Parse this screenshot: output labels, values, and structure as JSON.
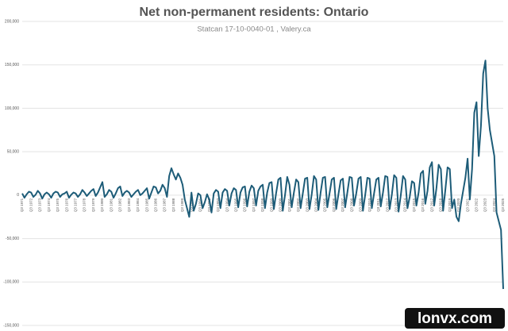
{
  "chart_data": {
    "type": "line",
    "title": "Net non-permanent residents: Ontario",
    "subtitle": "Statcan 17-10-0040-01 , Valery.ca",
    "watermark": "lonvx.com",
    "categories": [
      "Q3 1971",
      null,
      null,
      null,
      "Q3 1972",
      null,
      null,
      null,
      "Q3 1973",
      null,
      null,
      null,
      "Q3 1974",
      null,
      null,
      null,
      "Q3 1975",
      null,
      null,
      null,
      "Q3 1976",
      null,
      null,
      null,
      "Q3 1977",
      null,
      null,
      null,
      "Q3 1978",
      null,
      null,
      null,
      "Q3 1979",
      null,
      null,
      null,
      "Q3 1980",
      null,
      null,
      null,
      "Q3 1981",
      null,
      null,
      null,
      "Q3 1982",
      null,
      null,
      null,
      "Q3 1983",
      null,
      null,
      null,
      "Q3 1984",
      null,
      null,
      null,
      "Q3 1985",
      null,
      null,
      null,
      "Q3 1986",
      null,
      null,
      null,
      "Q3 1987",
      null,
      null,
      null,
      "Q3 1988",
      null,
      null,
      null,
      "Q3 1989",
      null,
      null,
      null,
      "Q3 1990",
      null,
      null,
      null,
      "Q3 1991",
      null,
      null,
      null,
      "Q3 1992",
      null,
      null,
      null,
      "Q3 1993",
      null,
      null,
      null,
      "Q3 1994",
      null,
      null,
      null,
      "Q3 1995",
      null,
      null,
      null,
      "Q3 1996",
      null,
      null,
      null,
      "Q3 1997",
      null,
      null,
      null,
      "Q3 1998",
      null,
      null,
      null,
      "Q3 1999",
      null,
      null,
      null,
      "Q3 2000",
      null,
      null,
      null,
      "Q3 2001",
      null,
      null,
      null,
      "Q3 2002",
      null,
      null,
      null,
      "Q3 2003",
      null,
      null,
      null,
      "Q3 2004",
      null,
      null,
      null,
      "Q3 2005",
      null,
      null,
      null,
      "Q3 2006",
      null,
      null,
      null,
      "Q3 2007",
      null,
      null,
      null,
      "Q3 2008",
      null,
      null,
      null,
      "Q3 2009",
      null,
      null,
      null,
      "Q3 2010",
      null,
      null,
      null,
      "Q3 2011",
      null,
      null,
      null,
      "Q3 2012",
      null,
      null,
      null,
      "Q3 2013",
      null,
      null,
      null,
      "Q3 2014",
      null,
      null,
      null,
      "Q3 2015",
      null,
      null,
      null,
      "Q3 2016",
      null,
      null,
      null,
      "Q3 2017",
      null,
      null,
      null,
      "Q3 2018",
      null,
      null,
      null,
      "Q3 2019",
      null,
      null,
      null,
      "Q3 2020",
      null,
      null,
      null,
      "Q3 2021",
      null,
      null,
      null,
      "Q3 2022",
      null,
      null,
      null,
      "Q3 2023",
      null,
      null,
      null,
      "Q3 2024",
      null,
      null,
      null,
      "Q3 2025"
    ],
    "series": [
      {
        "name": "Net non-permanent residents",
        "color": "#1d5c78",
        "values": [
          2000,
          -3000,
          1000,
          4000,
          3000,
          -2000,
          500,
          5000,
          2000,
          -4000,
          1000,
          3000,
          1000,
          -3000,
          2000,
          4000,
          3000,
          -2000,
          1000,
          2000,
          4000,
          -3000,
          500,
          3000,
          2000,
          -2000,
          1000,
          6000,
          3000,
          -1000,
          2000,
          5000,
          7000,
          -1000,
          3000,
          9000,
          15000,
          -2000,
          1000,
          6000,
          4000,
          -3000,
          2000,
          8000,
          10000,
          -1000,
          3000,
          5000,
          3000,
          -2000,
          1000,
          4000,
          6000,
          0,
          2000,
          5000,
          8000,
          -4000,
          3000,
          10000,
          9000,
          2000,
          5000,
          12000,
          8000,
          -2000,
          22000,
          31000,
          24000,
          18000,
          25000,
          20000,
          12000,
          -5000,
          -15000,
          -25000,
          3000,
          -18000,
          -10000,
          2000,
          0,
          -15000,
          -8000,
          1000,
          -5000,
          -20000,
          2000,
          6000,
          4000,
          -15000,
          3000,
          7000,
          5000,
          -12000,
          2000,
          8000,
          6000,
          -14000,
          3000,
          9000,
          10000,
          -13000,
          4000,
          11000,
          8000,
          -12000,
          5000,
          10000,
          12000,
          -15000,
          3000,
          14000,
          15000,
          -16000,
          2000,
          18000,
          20000,
          -18000,
          0,
          21000,
          12000,
          -14000,
          3000,
          18000,
          15000,
          -15000,
          2000,
          19000,
          20000,
          -16000,
          1000,
          22000,
          18000,
          -17000,
          3000,
          20000,
          21000,
          -14000,
          2000,
          18000,
          20000,
          -16000,
          1000,
          17000,
          19000,
          -14000,
          3000,
          21000,
          20000,
          -12000,
          2000,
          19000,
          21000,
          -18000,
          0,
          20000,
          19000,
          -15000,
          2000,
          18000,
          20000,
          -13000,
          3000,
          22000,
          21000,
          -16000,
          1000,
          23000,
          20000,
          -19000,
          0,
          22000,
          18000,
          -15000,
          -2000,
          16000,
          14000,
          -12000,
          3000,
          25000,
          28000,
          -10000,
          5000,
          32000,
          38000,
          -12000,
          8000,
          35000,
          30000,
          -18000,
          6000,
          32000,
          30000,
          -15000,
          -5000,
          -25000,
          -30000,
          -10000,
          5000,
          20000,
          42000,
          -5000,
          30000,
          95000,
          107000,
          45000,
          80000,
          140000,
          155000,
          100000,
          75000,
          60000,
          45000,
          -20000,
          -30000,
          -40000,
          -108000
        ]
      }
    ],
    "ylim": [
      -150000,
      200000
    ],
    "yticks": [
      {
        "value": -150000,
        "label": "-150,000"
      },
      {
        "value": -100000,
        "label": "-100,000"
      },
      {
        "value": -50000,
        "label": "-50,000"
      },
      0,
      {
        "value": 50000,
        "label": "50,000"
      },
      {
        "value": 100000,
        "label": "100,000"
      },
      {
        "value": 150000,
        "label": "150,000"
      },
      {
        "value": 200000,
        "label": "200,000"
      }
    ],
    "grid": true
  }
}
